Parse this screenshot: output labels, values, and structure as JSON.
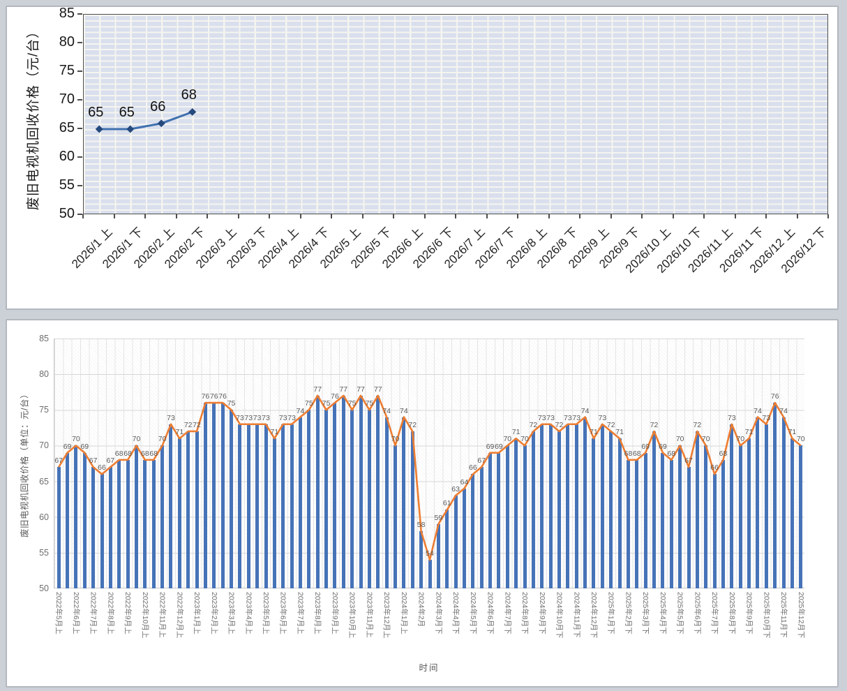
{
  "chart_data": [
    {
      "type": "line",
      "title": "",
      "ylabel": "废旧电视机回收价格（元/台）",
      "xlabel": "",
      "ylim": [
        50,
        85
      ],
      "ytick_step": 5,
      "grid": "on",
      "legend": "none",
      "categories": [
        "2026/1 上",
        "2026/1 下",
        "2026/2 上",
        "2026/2 下",
        "2026/3 上",
        "2026/3 下",
        "2026/4 上",
        "2026/4 下",
        "2026/5 上",
        "2026/5 下",
        "2026/6 上",
        "2026/6 下",
        "2026/7 上",
        "2026/7 下",
        "2026/8 上",
        "2026/8 下",
        "2026/9 上",
        "2026/9 下",
        "2026/10 上",
        "2026/10 下",
        "2026/11 上",
        "2026/11 下",
        "2026/12 上",
        "2026/12 下"
      ],
      "values": [
        65,
        65,
        66,
        68
      ],
      "data_labels": [
        "65",
        "65",
        "66",
        "68"
      ],
      "line_color": "#3e6fae",
      "marker_color": "#264a7e",
      "plot_bg": "#d9dfed"
    },
    {
      "type": "bar",
      "title": "",
      "ylabel": "废旧电视机回收价格（单位：元/台）",
      "xlabel": "时间",
      "ylim": [
        50,
        85
      ],
      "ytick_step": 5,
      "grid": "on",
      "legend": "none",
      "tick_every": 2,
      "tick_labels": [
        "2022年5月上",
        "2022年6月上",
        "2022年7月上",
        "2022年8月上",
        "2022年9月上",
        "2022年10月上",
        "2022年11月上",
        "2022年12月上",
        "2023年1月上",
        "2023年2月上",
        "2023年3月上",
        "2023年4月上",
        "2023年5月上",
        "2023年6月上",
        "2023年7月上",
        "2023年8月上",
        "2023年9月上",
        "2023年10月上",
        "2023年11月上",
        "2023年12月上",
        "2024年1月上",
        "2024年2月",
        "2024年3月下",
        "2024年4月下",
        "2024年5月下",
        "2024年6月下",
        "2024年7月下",
        "2024年8月下",
        "2024年9月下",
        "2024年10月下",
        "2024年11月下",
        "2024年12月下",
        "2025年1月下",
        "2025年2月下",
        "2025年3月下",
        "2025年4月下",
        "2025年5月下",
        "2025年6月下",
        "2025年7月下",
        "2025年8月下",
        "2025年9月下",
        "2025年10月下",
        "2025年11月下",
        "2025年12月下"
      ],
      "values": [
        67,
        69,
        70,
        69,
        67,
        66,
        67,
        68,
        68,
        70,
        68,
        68,
        70,
        73,
        71,
        72,
        72,
        76,
        76,
        76,
        75,
        73,
        73,
        73,
        73,
        71,
        73,
        73,
        74,
        75,
        77,
        75,
        76,
        77,
        75,
        77,
        75,
        77,
        74,
        70,
        74,
        72,
        58,
        54,
        59,
        61,
        63,
        64,
        66,
        67,
        69,
        69,
        70,
        71,
        70,
        72,
        73,
        73,
        72,
        73,
        73,
        74,
        71,
        73,
        72,
        71,
        68,
        68,
        69,
        72,
        69,
        68,
        70,
        67,
        72,
        70,
        66,
        68,
        73,
        70,
        71,
        74,
        73,
        76,
        74,
        71,
        70
      ],
      "series": [
        {
          "name": "bar-series",
          "type": "bar",
          "color": "#4673b8"
        },
        {
          "name": "line-series",
          "type": "line",
          "color": "#ed7d31"
        }
      ],
      "label_color": "#595959"
    }
  ]
}
